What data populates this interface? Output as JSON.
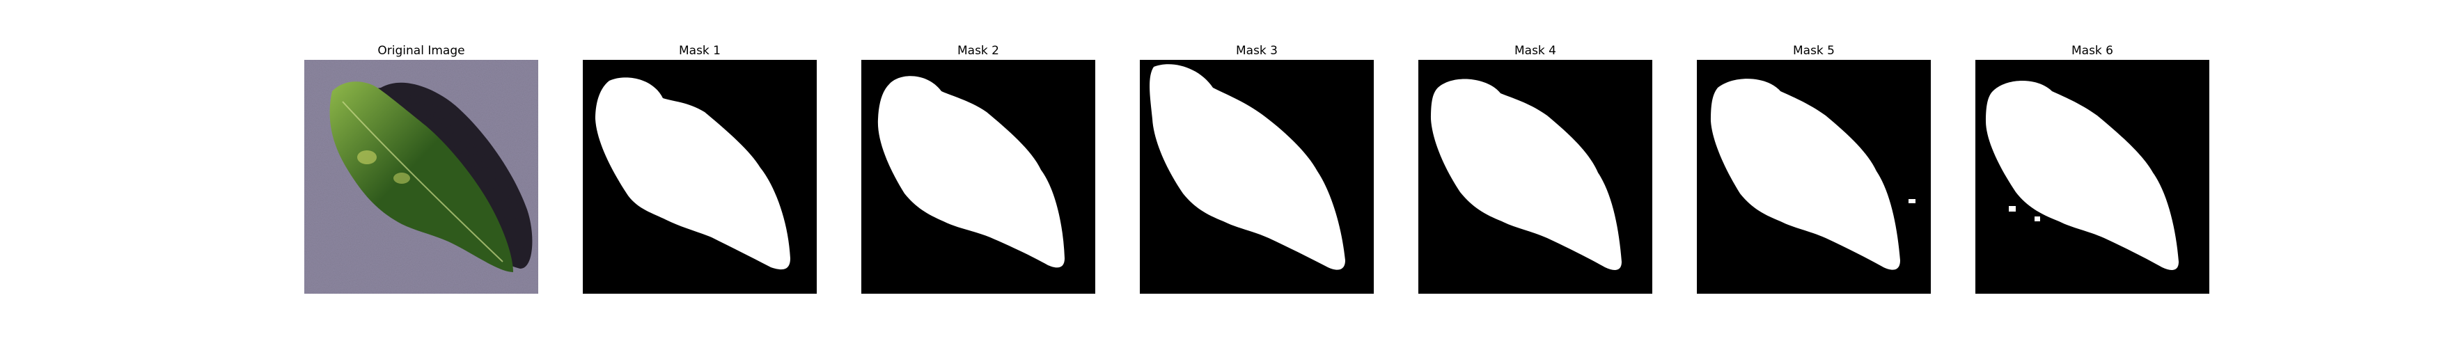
{
  "figure": {
    "panels": [
      {
        "title": "Original Image",
        "kind": "photo"
      },
      {
        "title": "Mask 1",
        "kind": "mask"
      },
      {
        "title": "Mask 2",
        "kind": "mask"
      },
      {
        "title": "Mask 3",
        "kind": "mask"
      },
      {
        "title": "Mask 4",
        "kind": "mask"
      },
      {
        "title": "Mask 5",
        "kind": "mask"
      },
      {
        "title": "Mask 6",
        "kind": "mask"
      }
    ]
  },
  "colors": {
    "mask_background": "#000000",
    "mask_foreground": "#ffffff",
    "photo_background": "#8d87a0",
    "leaf_dark": "#2f5a1c",
    "leaf_light": "#8fb84a",
    "shadow": "#17131c"
  }
}
